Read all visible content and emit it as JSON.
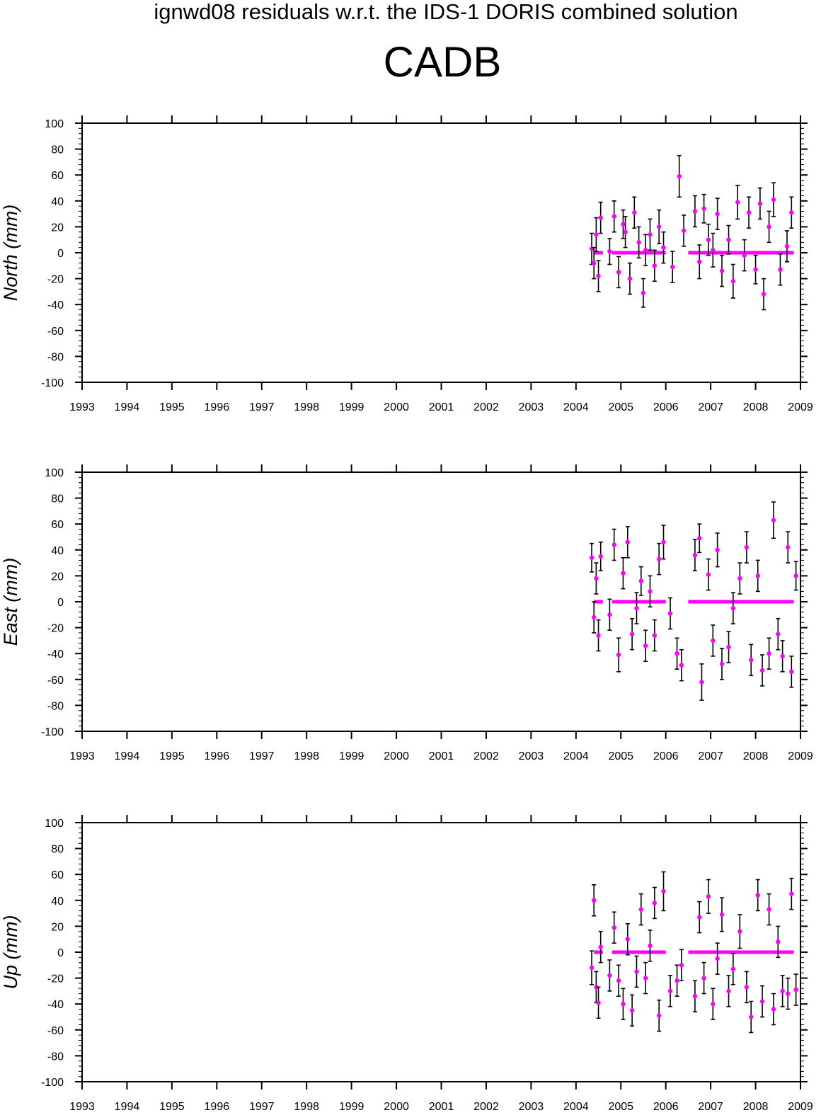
{
  "figure": {
    "title": "ignwd08 residuals w.r.t. the IDS-1 DORIS combined solution",
    "station": "CADB"
  },
  "colors": {
    "point": "#ff00ff",
    "error_bar": "#000000",
    "axis": "#000000"
  },
  "chart_data": [
    {
      "type": "scatter",
      "component": "North",
      "ylabel": "North (mm)",
      "xlim": [
        1993,
        2009
      ],
      "ylim": [
        -100,
        100
      ],
      "xticks": [
        1993,
        1994,
        1995,
        1996,
        1997,
        1998,
        1999,
        2000,
        2001,
        2002,
        2003,
        2004,
        2005,
        2006,
        2007,
        2008,
        2009
      ],
      "yticks": [
        100,
        80,
        60,
        40,
        20,
        0,
        -20,
        -40,
        -60,
        -80,
        -100
      ],
      "grid": false,
      "series": [
        {
          "x": [
            2004.35,
            2004.4,
            2004.45,
            2004.5,
            2004.55,
            2004.75,
            2004.85,
            2004.95,
            2005.05,
            2005.1,
            2005.2,
            2005.3,
            2005.4,
            2005.5,
            2005.55,
            2005.65,
            2005.75,
            2005.85,
            2005.95,
            2006.15,
            2006.3,
            2006.4,
            2006.65,
            2006.75,
            2006.85,
            2006.95,
            2007.05,
            2007.15,
            2007.25,
            2007.4,
            2007.5,
            2007.6,
            2007.75,
            2007.85,
            2008.0,
            2008.1,
            2008.18,
            2008.3,
            2008.4,
            2008.55,
            2008.7,
            2008.8
          ],
          "y": [
            3,
            -8,
            14,
            -18,
            27,
            1,
            28,
            -15,
            22,
            16,
            -20,
            31,
            8,
            -31,
            2,
            14,
            -10,
            20,
            4,
            -11,
            59,
            17,
            32,
            -7,
            34,
            10,
            2,
            30,
            -14,
            10,
            -22,
            39,
            -2,
            31,
            -13,
            38,
            -32,
            20,
            41,
            -13,
            5,
            31
          ],
          "yerr": [
            12,
            12,
            13,
            12,
            12,
            10,
            12,
            12,
            11,
            12,
            12,
            12,
            12,
            11,
            12,
            12,
            12,
            13,
            12,
            12,
            16,
            12,
            12,
            13,
            11,
            12,
            13,
            12,
            12,
            11,
            13,
            13,
            12,
            12,
            11,
            12,
            12,
            12,
            13,
            12,
            12,
            12
          ],
          "zero_segments": [
            [
              2004.4,
              2004.6
            ],
            [
              2004.8,
              2006.0
            ],
            [
              2006.5,
              2008.85
            ]
          ]
        }
      ]
    },
    {
      "type": "scatter",
      "component": "East",
      "ylabel": "East (mm)",
      "xlim": [
        1993,
        2009
      ],
      "ylim": [
        -100,
        100
      ],
      "xticks": [
        1993,
        1994,
        1995,
        1996,
        1997,
        1998,
        1999,
        2000,
        2001,
        2002,
        2003,
        2004,
        2005,
        2006,
        2007,
        2008,
        2009
      ],
      "yticks": [
        100,
        80,
        60,
        40,
        20,
        0,
        -20,
        -40,
        -60,
        -80,
        -100
      ],
      "grid": false,
      "series": [
        {
          "x": [
            2004.35,
            2004.4,
            2004.45,
            2004.5,
            2004.55,
            2004.75,
            2004.85,
            2004.95,
            2005.05,
            2005.15,
            2005.25,
            2005.35,
            2005.45,
            2005.55,
            2005.65,
            2005.75,
            2005.85,
            2005.95,
            2006.1,
            2006.25,
            2006.35,
            2006.65,
            2006.75,
            2006.8,
            2006.95,
            2007.05,
            2007.15,
            2007.25,
            2007.4,
            2007.5,
            2007.65,
            2007.8,
            2007.9,
            2008.05,
            2008.15,
            2008.3,
            2008.4,
            2008.5,
            2008.6,
            2008.72,
            2008.8,
            2008.9
          ],
          "y": [
            34,
            -12,
            18,
            -26,
            35,
            -10,
            44,
            -41,
            22,
            46,
            -25,
            -5,
            16,
            -34,
            8,
            -26,
            33,
            46,
            -9,
            -40,
            -49,
            36,
            49,
            -62,
            21,
            -30,
            40,
            -48,
            -35,
            -5,
            18,
            42,
            -45,
            20,
            -53,
            -40,
            63,
            -25,
            -42,
            42,
            -54,
            20
          ],
          "yerr": [
            11,
            12,
            12,
            12,
            11,
            12,
            12,
            13,
            12,
            12,
            12,
            12,
            11,
            12,
            12,
            12,
            12,
            13,
            12,
            12,
            12,
            12,
            11,
            14,
            12,
            12,
            13,
            12,
            12,
            12,
            12,
            12,
            12,
            12,
            12,
            12,
            14,
            12,
            12,
            12,
            12,
            11
          ],
          "zero_segments": [
            [
              2004.4,
              2004.6
            ],
            [
              2004.8,
              2006.0
            ],
            [
              2006.5,
              2008.85
            ]
          ]
        }
      ]
    },
    {
      "type": "scatter",
      "component": "Up",
      "ylabel": "Up (mm)",
      "xlim": [
        1993,
        2009
      ],
      "ylim": [
        -100,
        100
      ],
      "xticks": [
        1993,
        1994,
        1995,
        1996,
        1997,
        1998,
        1999,
        2000,
        2001,
        2002,
        2003,
        2004,
        2005,
        2006,
        2007,
        2008,
        2009
      ],
      "yticks": [
        100,
        80,
        60,
        40,
        20,
        0,
        -20,
        -40,
        -60,
        -80,
        -100
      ],
      "grid": false,
      "series": [
        {
          "x": [
            2004.35,
            2004.4,
            2004.45,
            2004.5,
            2004.55,
            2004.75,
            2004.85,
            2004.95,
            2005.05,
            2005.15,
            2005.25,
            2005.35,
            2005.45,
            2005.55,
            2005.65,
            2005.75,
            2005.85,
            2005.95,
            2006.1,
            2006.25,
            2006.35,
            2006.65,
            2006.75,
            2006.85,
            2006.95,
            2007.05,
            2007.15,
            2007.25,
            2007.4,
            2007.5,
            2007.65,
            2007.8,
            2007.9,
            2008.05,
            2008.15,
            2008.3,
            2008.4,
            2008.5,
            2008.6,
            2008.72,
            2008.8,
            2008.9
          ],
          "y": [
            -12,
            40,
            -27,
            -39,
            4,
            -18,
            19,
            -22,
            -40,
            10,
            -45,
            -15,
            33,
            -20,
            5,
            38,
            -49,
            47,
            -30,
            -22,
            -10,
            -34,
            27,
            -20,
            43,
            -40,
            -5,
            29,
            -30,
            -13,
            16,
            -27,
            -50,
            44,
            -38,
            33,
            -44,
            8,
            -30,
            -32,
            45,
            -29
          ],
          "yerr": [
            13,
            12,
            12,
            12,
            12,
            12,
            12,
            12,
            12,
            12,
            12,
            12,
            12,
            12,
            12,
            12,
            12,
            15,
            12,
            12,
            12,
            12,
            12,
            12,
            13,
            12,
            12,
            13,
            12,
            12,
            13,
            12,
            12,
            12,
            12,
            12,
            12,
            12,
            12,
            12,
            12,
            12
          ],
          "zero_segments": [
            [
              2004.4,
              2004.6
            ],
            [
              2004.8,
              2006.0
            ],
            [
              2006.5,
              2008.85
            ]
          ]
        }
      ]
    }
  ]
}
